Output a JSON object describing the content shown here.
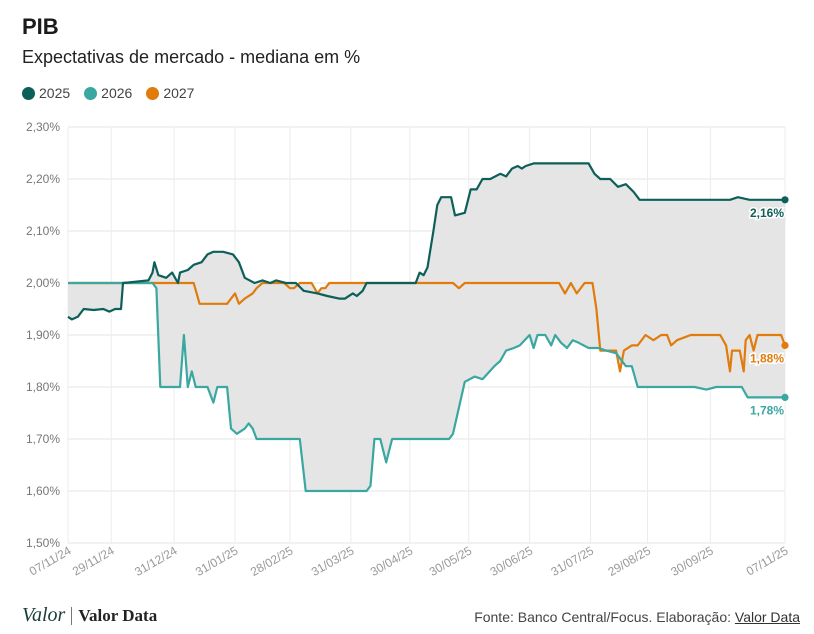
{
  "title": "PIB",
  "subtitle": "Expectativas de mercado - mediana em %",
  "legend": [
    {
      "label": "2025",
      "color": "#0d5f59"
    },
    {
      "label": "2026",
      "color": "#3aa7a1"
    },
    {
      "label": "2027",
      "color": "#e07b0c"
    }
  ],
  "footer": {
    "logo": "Valor",
    "brand": "Valor Data",
    "source_prefix": "Fonte: Banco Central/Focus. Elaboração: ",
    "source_link": "Valor Data"
  },
  "chart_data": {
    "type": "line",
    "ylim": [
      1.5,
      2.3
    ],
    "yticks": [
      "2,30%",
      "2,20%",
      "2,10%",
      "2,00%",
      "1,90%",
      "1,80%",
      "1,70%",
      "1,60%",
      "1,50%"
    ],
    "ytick_values": [
      2.3,
      2.2,
      2.1,
      2.0,
      1.9,
      1.8,
      1.7,
      1.6,
      1.5
    ],
    "xlim": [
      "2024-11-07",
      "2025-11-07"
    ],
    "xticks": [
      {
        "label": "07/11/24",
        "date": "2024-11-07"
      },
      {
        "label": "29/11/24",
        "date": "2024-11-29"
      },
      {
        "label": "31/12/24",
        "date": "2024-12-31"
      },
      {
        "label": "31/01/25",
        "date": "2025-01-31"
      },
      {
        "label": "28/02/25",
        "date": "2025-02-28"
      },
      {
        "label": "31/03/25",
        "date": "2025-03-31"
      },
      {
        "label": "30/04/25",
        "date": "2025-04-30"
      },
      {
        "label": "30/05/25",
        "date": "2025-05-30"
      },
      {
        "label": "30/06/25",
        "date": "2025-06-30"
      },
      {
        "label": "31/07/25",
        "date": "2025-07-31"
      },
      {
        "label": "29/08/25",
        "date": "2025-08-29"
      },
      {
        "label": "30/09/25",
        "date": "2025-09-30"
      },
      {
        "label": "07/11/25",
        "date": "2025-11-07"
      }
    ],
    "series": [
      {
        "name": "2025",
        "color": "#0d5f59",
        "end_label": "2,16%",
        "points": [
          [
            "2024-11-07",
            1.935
          ],
          [
            "2024-11-09",
            1.93
          ],
          [
            "2024-11-12",
            1.935
          ],
          [
            "2024-11-15",
            1.95
          ],
          [
            "2024-11-20",
            1.948
          ],
          [
            "2024-11-25",
            1.95
          ],
          [
            "2024-11-28",
            1.945
          ],
          [
            "2024-12-01",
            1.95
          ],
          [
            "2024-12-04",
            1.95
          ],
          [
            "2024-12-05",
            2.0
          ],
          [
            "2024-12-18",
            2.005
          ],
          [
            "2024-12-20",
            2.02
          ],
          [
            "2024-12-21",
            2.04
          ],
          [
            "2024-12-23",
            2.015
          ],
          [
            "2024-12-27",
            2.01
          ],
          [
            "2024-12-30",
            2.02
          ],
          [
            "2025-01-02",
            2.0
          ],
          [
            "2025-01-03",
            2.02
          ],
          [
            "2025-01-07",
            2.025
          ],
          [
            "2025-01-10",
            2.035
          ],
          [
            "2025-01-14",
            2.04
          ],
          [
            "2025-01-17",
            2.055
          ],
          [
            "2025-01-20",
            2.06
          ],
          [
            "2025-01-25",
            2.06
          ],
          [
            "2025-01-30",
            2.055
          ],
          [
            "2025-02-02",
            2.04
          ],
          [
            "2025-02-05",
            2.01
          ],
          [
            "2025-02-10",
            2.0
          ],
          [
            "2025-02-14",
            2.005
          ],
          [
            "2025-02-18",
            2.0
          ],
          [
            "2025-02-21",
            2.005
          ],
          [
            "2025-02-26",
            2.0
          ],
          [
            "2025-03-03",
            2.0
          ],
          [
            "2025-03-07",
            1.985
          ],
          [
            "2025-03-14",
            1.98
          ],
          [
            "2025-03-19",
            1.975
          ],
          [
            "2025-03-25",
            1.97
          ],
          [
            "2025-03-28",
            1.97
          ],
          [
            "2025-04-01",
            1.98
          ],
          [
            "2025-04-03",
            1.975
          ],
          [
            "2025-04-06",
            1.985
          ],
          [
            "2025-04-08",
            2.0
          ],
          [
            "2025-04-27",
            2.0
          ],
          [
            "2025-05-03",
            2.0
          ],
          [
            "2025-05-05",
            2.02
          ],
          [
            "2025-05-07",
            2.015
          ],
          [
            "2025-05-09",
            2.03
          ],
          [
            "2025-05-12",
            2.1
          ],
          [
            "2025-05-14",
            2.15
          ],
          [
            "2025-05-16",
            2.165
          ],
          [
            "2025-05-21",
            2.165
          ],
          [
            "2025-05-23",
            2.13
          ],
          [
            "2025-05-28",
            2.135
          ],
          [
            "2025-05-31",
            2.18
          ],
          [
            "2025-06-03",
            2.18
          ],
          [
            "2025-06-06",
            2.2
          ],
          [
            "2025-06-10",
            2.2
          ],
          [
            "2025-06-15",
            2.21
          ],
          [
            "2025-06-18",
            2.205
          ],
          [
            "2025-06-21",
            2.22
          ],
          [
            "2025-06-24",
            2.225
          ],
          [
            "2025-06-26",
            2.22
          ],
          [
            "2025-06-28",
            2.225
          ],
          [
            "2025-07-02",
            2.23
          ],
          [
            "2025-07-10",
            2.23
          ],
          [
            "2025-07-25",
            2.23
          ],
          [
            "2025-07-30",
            2.23
          ],
          [
            "2025-08-02",
            2.21
          ],
          [
            "2025-08-05",
            2.2
          ],
          [
            "2025-08-10",
            2.2
          ],
          [
            "2025-08-14",
            2.185
          ],
          [
            "2025-08-18",
            2.19
          ],
          [
            "2025-08-22",
            2.175
          ],
          [
            "2025-08-25",
            2.16
          ],
          [
            "2025-09-01",
            2.16
          ],
          [
            "2025-09-15",
            2.16
          ],
          [
            "2025-09-30",
            2.16
          ],
          [
            "2025-10-10",
            2.16
          ],
          [
            "2025-10-14",
            2.165
          ],
          [
            "2025-10-20",
            2.16
          ],
          [
            "2025-11-07",
            2.16
          ]
        ]
      },
      {
        "name": "2026",
        "color": "#3aa7a1",
        "end_label": "1,78%",
        "points": [
          [
            "2024-11-07",
            2.0
          ],
          [
            "2024-12-20",
            2.0
          ],
          [
            "2024-12-22",
            1.99
          ],
          [
            "2024-12-24",
            1.8
          ],
          [
            "2024-12-29",
            1.8
          ],
          [
            "2025-01-03",
            1.8
          ],
          [
            "2025-01-05",
            1.9
          ],
          [
            "2025-01-07",
            1.8
          ],
          [
            "2025-01-09",
            1.83
          ],
          [
            "2025-01-11",
            1.8
          ],
          [
            "2025-01-17",
            1.8
          ],
          [
            "2025-01-20",
            1.77
          ],
          [
            "2025-01-22",
            1.8
          ],
          [
            "2025-01-27",
            1.8
          ],
          [
            "2025-01-29",
            1.72
          ],
          [
            "2025-02-01",
            1.71
          ],
          [
            "2025-02-05",
            1.72
          ],
          [
            "2025-02-07",
            1.73
          ],
          [
            "2025-02-09",
            1.72
          ],
          [
            "2025-02-11",
            1.7
          ],
          [
            "2025-02-20",
            1.7
          ],
          [
            "2025-03-01",
            1.7
          ],
          [
            "2025-03-05",
            1.7
          ],
          [
            "2025-03-08",
            1.6
          ],
          [
            "2025-03-20",
            1.6
          ],
          [
            "2025-04-08",
            1.6
          ],
          [
            "2025-04-10",
            1.61
          ],
          [
            "2025-04-12",
            1.7
          ],
          [
            "2025-04-15",
            1.7
          ],
          [
            "2025-04-18",
            1.655
          ],
          [
            "2025-04-21",
            1.7
          ],
          [
            "2025-04-24",
            1.7
          ],
          [
            "2025-05-01",
            1.7
          ],
          [
            "2025-05-10",
            1.7
          ],
          [
            "2025-05-20",
            1.7
          ],
          [
            "2025-05-22",
            1.71
          ],
          [
            "2025-05-28",
            1.81
          ],
          [
            "2025-06-02",
            1.82
          ],
          [
            "2025-06-06",
            1.815
          ],
          [
            "2025-06-12",
            1.84
          ],
          [
            "2025-06-15",
            1.85
          ],
          [
            "2025-06-18",
            1.87
          ],
          [
            "2025-06-22",
            1.875
          ],
          [
            "2025-06-25",
            1.88
          ],
          [
            "2025-06-30",
            1.9
          ],
          [
            "2025-07-02",
            1.875
          ],
          [
            "2025-07-04",
            1.9
          ],
          [
            "2025-07-08",
            1.9
          ],
          [
            "2025-07-11",
            1.88
          ],
          [
            "2025-07-13",
            1.9
          ],
          [
            "2025-07-16",
            1.885
          ],
          [
            "2025-07-19",
            1.875
          ],
          [
            "2025-07-22",
            1.89
          ],
          [
            "2025-07-25",
            1.885
          ],
          [
            "2025-07-30",
            1.875
          ],
          [
            "2025-08-04",
            1.875
          ],
          [
            "2025-08-08",
            1.87
          ],
          [
            "2025-08-13",
            1.865
          ],
          [
            "2025-08-18",
            1.84
          ],
          [
            "2025-08-21",
            1.84
          ],
          [
            "2025-08-24",
            1.8
          ],
          [
            "2025-09-05",
            1.8
          ],
          [
            "2025-09-15",
            1.8
          ],
          [
            "2025-09-22",
            1.8
          ],
          [
            "2025-09-28",
            1.795
          ],
          [
            "2025-10-03",
            1.8
          ],
          [
            "2025-10-16",
            1.8
          ],
          [
            "2025-10-19",
            1.78
          ],
          [
            "2025-11-07",
            1.78
          ]
        ]
      },
      {
        "name": "2027",
        "color": "#e07b0c",
        "end_label": "1,88%",
        "points": [
          [
            "2024-11-07",
            2.0
          ],
          [
            "2025-01-10",
            2.0
          ],
          [
            "2025-01-13",
            1.96
          ],
          [
            "2025-01-20",
            1.96
          ],
          [
            "2025-01-22",
            1.96
          ],
          [
            "2025-01-27",
            1.96
          ],
          [
            "2025-01-29",
            1.97
          ],
          [
            "2025-01-31",
            1.98
          ],
          [
            "2025-02-02",
            1.96
          ],
          [
            "2025-02-05",
            1.97
          ],
          [
            "2025-02-09",
            1.98
          ],
          [
            "2025-02-11",
            1.99
          ],
          [
            "2025-02-14",
            2.0
          ],
          [
            "2025-02-25",
            2.0
          ],
          [
            "2025-02-28",
            1.99
          ],
          [
            "2025-03-02",
            1.99
          ],
          [
            "2025-03-05",
            2.0
          ],
          [
            "2025-03-11",
            2.0
          ],
          [
            "2025-03-14",
            1.98
          ],
          [
            "2025-03-16",
            1.99
          ],
          [
            "2025-03-18",
            1.99
          ],
          [
            "2025-03-20",
            2.0
          ],
          [
            "2025-04-30",
            2.0
          ],
          [
            "2025-05-22",
            2.0
          ],
          [
            "2025-05-25",
            1.99
          ],
          [
            "2025-05-28",
            2.0
          ],
          [
            "2025-07-15",
            2.0
          ],
          [
            "2025-07-18",
            1.98
          ],
          [
            "2025-07-21",
            2.0
          ],
          [
            "2025-07-24",
            1.98
          ],
          [
            "2025-07-28",
            2.0
          ],
          [
            "2025-08-01",
            2.0
          ],
          [
            "2025-08-03",
            1.95
          ],
          [
            "2025-08-05",
            1.87
          ],
          [
            "2025-08-09",
            1.87
          ],
          [
            "2025-08-13",
            1.87
          ],
          [
            "2025-08-15",
            1.83
          ],
          [
            "2025-08-17",
            1.87
          ],
          [
            "2025-08-21",
            1.88
          ],
          [
            "2025-08-24",
            1.88
          ],
          [
            "2025-08-28",
            1.9
          ],
          [
            "2025-09-01",
            1.89
          ],
          [
            "2025-09-05",
            1.9
          ],
          [
            "2025-09-08",
            1.9
          ],
          [
            "2025-09-10",
            1.88
          ],
          [
            "2025-09-13",
            1.89
          ],
          [
            "2025-09-20",
            1.9
          ],
          [
            "2025-10-05",
            1.9
          ],
          [
            "2025-10-08",
            1.88
          ],
          [
            "2025-10-10",
            1.83
          ],
          [
            "2025-10-11",
            1.87
          ],
          [
            "2025-10-15",
            1.87
          ],
          [
            "2025-10-17",
            1.83
          ],
          [
            "2025-10-18",
            1.89
          ],
          [
            "2025-10-20",
            1.9
          ],
          [
            "2025-10-22",
            1.87
          ],
          [
            "2025-10-24",
            1.9
          ],
          [
            "2025-11-05",
            1.9
          ],
          [
            "2025-11-07",
            1.88
          ]
        ]
      }
    ]
  }
}
